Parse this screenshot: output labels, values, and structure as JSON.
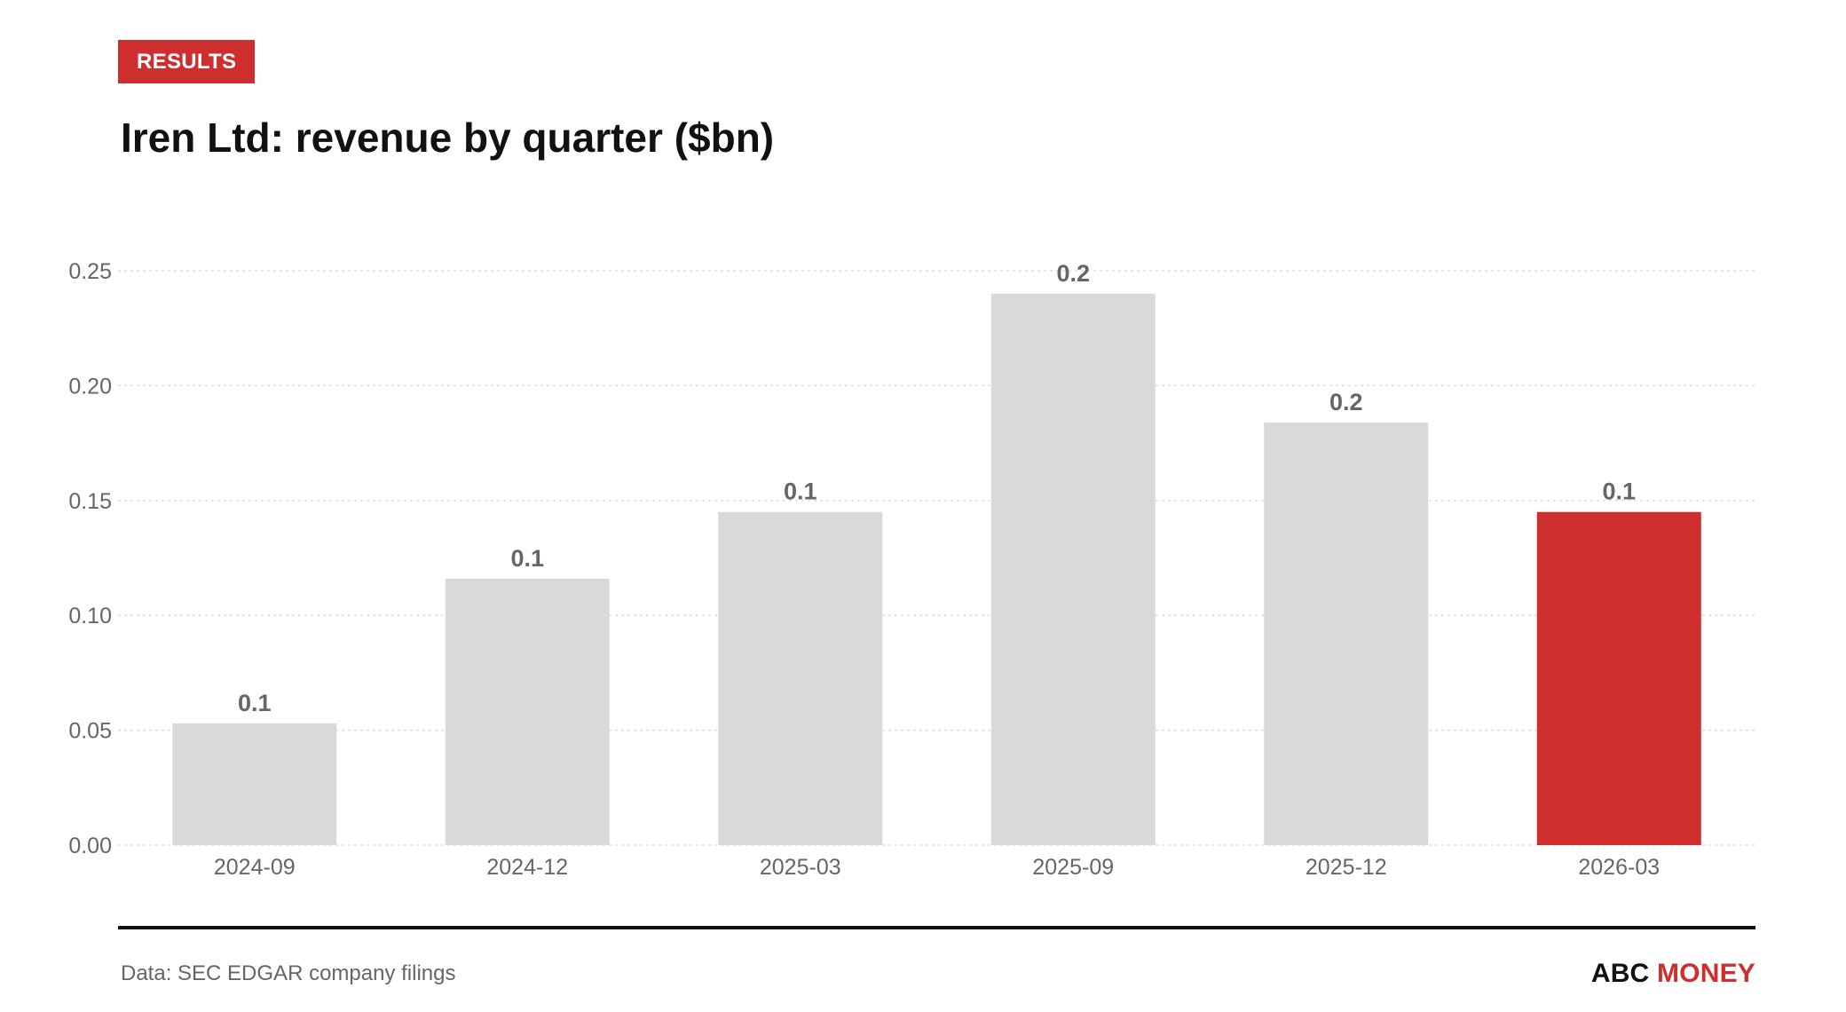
{
  "header": {
    "badge": "RESULTS",
    "title": "Iren Ltd: revenue by quarter ($bn)"
  },
  "footer": {
    "source": "Data: SEC EDGAR company filings",
    "brand_part1": "ABC",
    "brand_part2": "MONEY"
  },
  "colors": {
    "bar": "#d9d9d9",
    "highlight": "#cf2e2e",
    "label": "#666666",
    "grid": "#dddddd"
  },
  "chart_data": {
    "type": "bar",
    "title": "Iren Ltd: revenue by quarter ($bn)",
    "xlabel": "",
    "ylabel": "",
    "categories": [
      "2024-09",
      "2024-12",
      "2025-03",
      "2025-09",
      "2025-12",
      "2026-03"
    ],
    "values": [
      0.053,
      0.116,
      0.145,
      0.24,
      0.184,
      0.145
    ],
    "data_labels": [
      "0.1",
      "0.1",
      "0.1",
      "0.2",
      "0.2",
      "0.1"
    ],
    "highlight_index": 5,
    "ylim": [
      0,
      0.25
    ],
    "yticks": [
      0,
      0.05,
      0.1,
      0.15,
      0.2,
      0.25
    ],
    "ytick_labels": [
      "0.00",
      "0.05",
      "0.10",
      "0.15",
      "0.20",
      "0.25"
    ],
    "grid": true,
    "legend": "none"
  }
}
